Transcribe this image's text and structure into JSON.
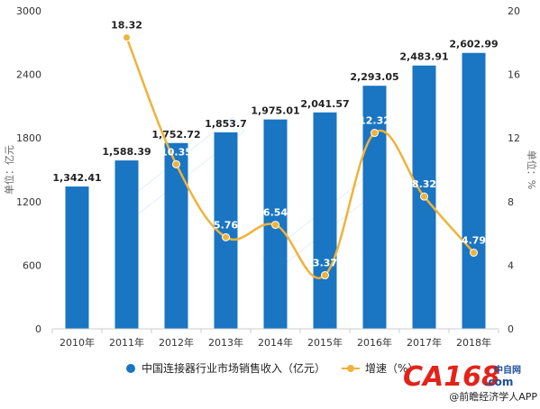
{
  "chart_data": {
    "type": "bar",
    "categories": [
      "2010年",
      "2011年",
      "2012年",
      "2013年",
      "2014年",
      "2015年",
      "2016年",
      "2017年",
      "2018年"
    ],
    "series": [
      {
        "name": "中国连接器行业市场销售收入（亿元）",
        "type": "bar",
        "axis": "left",
        "color": "#1a75c2",
        "values": [
          1342.41,
          1588.39,
          1752.72,
          1853.7,
          1975.01,
          2041.57,
          2293.05,
          2483.91,
          2602.99
        ],
        "labels": [
          "1,342.41",
          "1,588.39",
          "1,752.72",
          "1,853.7",
          "1,975.01",
          "2,041.57",
          "2,293.05",
          "2,483.91",
          "2,602.99"
        ]
      },
      {
        "name": "增速（%）",
        "type": "line",
        "axis": "right",
        "color": "#f0b23a",
        "values": [
          null,
          18.32,
          10.35,
          5.76,
          6.54,
          3.37,
          12.32,
          8.32,
          4.79
        ],
        "labels": [
          "",
          "18.32",
          "10.35",
          "5.76",
          "6.54",
          "3.37",
          "12.32",
          "8.32",
          "4.79"
        ]
      }
    ],
    "ylabel": "单位：亿元",
    "y2label": "单位：%",
    "ylim": [
      0,
      3000
    ],
    "y2lim": [
      0,
      20
    ],
    "yticks": [
      "0",
      "600",
      "1200",
      "1800",
      "2400",
      "3000"
    ],
    "y2ticks": [
      "0",
      "4",
      "8",
      "12",
      "16",
      "20"
    ],
    "grid": false,
    "legend": "bottom"
  },
  "watermark": {
    "ca168": "CA168",
    "ca168_com": ".com",
    "site_cn": "中自网",
    "source": "@前瞻经济学人APP"
  }
}
